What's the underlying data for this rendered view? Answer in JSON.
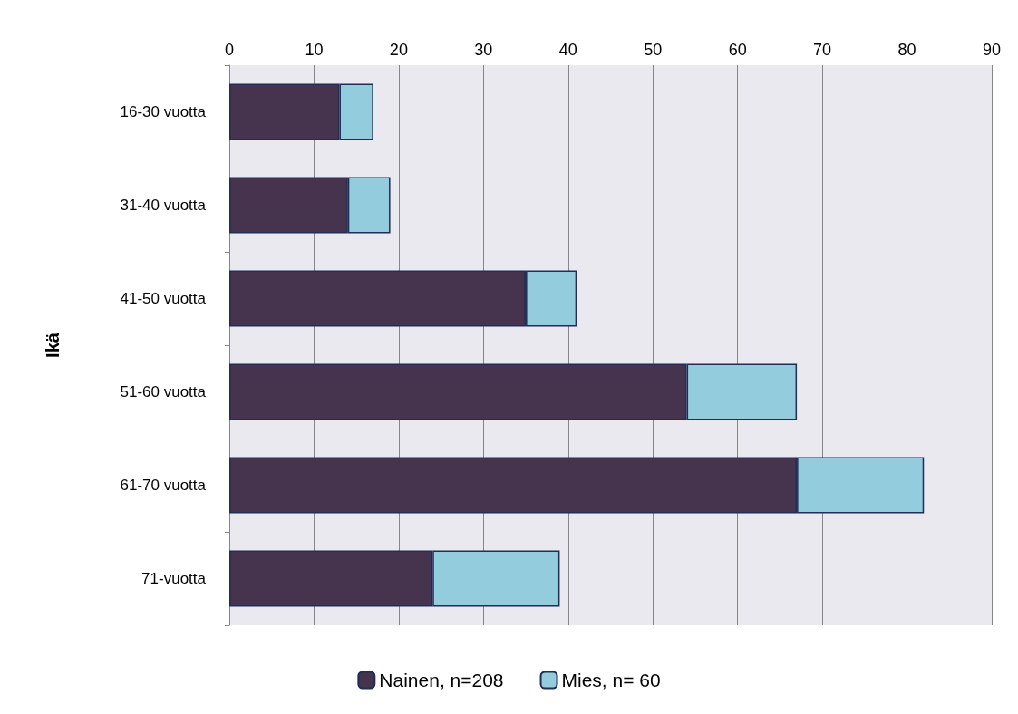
{
  "chart_data": {
    "type": "bar",
    "orientation": "horizontal",
    "stacked": true,
    "ylabel": "Ikä",
    "categories": [
      "16-30 vuotta",
      "31-40 vuotta",
      "41-50 vuotta",
      "51-60 vuotta",
      "61-70 vuotta",
      "71-vuotta"
    ],
    "series": [
      {
        "name": "Nainen, n=208",
        "color": "#46344f",
        "values": [
          13,
          14,
          35,
          54,
          67,
          24
        ]
      },
      {
        "name": "Mies, n= 60",
        "color": "#93cddd",
        "values": [
          4,
          5,
          6,
          13,
          15,
          15
        ]
      }
    ],
    "xlim": [
      0,
      90
    ],
    "xticks": [
      0,
      10,
      20,
      30,
      40,
      50,
      60,
      70,
      80,
      90
    ],
    "grid": "x",
    "legend": "bottom"
  }
}
